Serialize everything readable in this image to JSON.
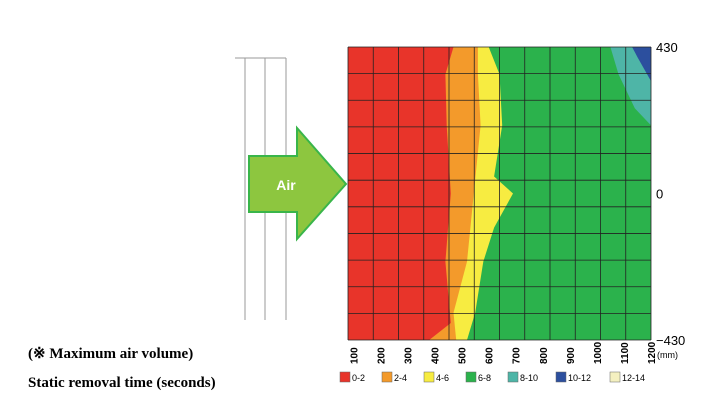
{
  "notes": {
    "line1": "(※ Maximum air volume)",
    "line2": "Static removal time (seconds)"
  },
  "arrow": {
    "label": "Air",
    "fill": "#8dc63f",
    "stroke": "#39b54a",
    "text_color": "#ffffff"
  },
  "chart_data": {
    "type": "heatmap",
    "title": "",
    "x": {
      "unit": "(mm)",
      "ticks": [
        100,
        200,
        300,
        400,
        500,
        600,
        700,
        800,
        900,
        1000,
        1100,
        1200
      ],
      "range": [
        80,
        1200
      ]
    },
    "y": {
      "ticks": [
        430,
        0,
        -430
      ],
      "range": [
        -430,
        430
      ]
    },
    "grid": true,
    "legend": {
      "position": "bottom",
      "entries": [
        {
          "label": "0-2",
          "color": "#e8342a"
        },
        {
          "label": "2-4",
          "color": "#f39a2b"
        },
        {
          "label": "4-6",
          "color": "#f7ec41"
        },
        {
          "label": "6-8",
          "color": "#2bb24c"
        },
        {
          "label": "8-10",
          "color": "#4eb5a7"
        },
        {
          "label": "10-12",
          "color": "#2c4f9e"
        },
        {
          "label": "12-14",
          "color": "#f4f0c0"
        }
      ]
    },
    "zone_boundaries_mm": [
      {
        "between": "0-2 / 2-4",
        "points": [
          [
            430,
            470
          ],
          [
            350,
            440
          ],
          [
            200,
            445
          ],
          [
            0,
            460
          ],
          [
            -200,
            440
          ],
          [
            -380,
            460
          ],
          [
            -430,
            380
          ]
        ]
      },
      {
        "between": "2-4 / 4-6",
        "points": [
          [
            430,
            560
          ],
          [
            350,
            560
          ],
          [
            200,
            570
          ],
          [
            0,
            545
          ],
          [
            -200,
            520
          ],
          [
            -350,
            470
          ],
          [
            -430,
            480
          ]
        ]
      },
      {
        "between": "4-6 / 6-8",
        "points": [
          [
            430,
            600
          ],
          [
            350,
            640
          ],
          [
            200,
            650
          ],
          [
            50,
            620
          ],
          [
            0,
            690
          ],
          [
            -100,
            620
          ],
          [
            -200,
            580
          ],
          [
            -350,
            550
          ],
          [
            -430,
            520
          ]
        ]
      },
      {
        "between": "6-8 / 8-10",
        "points": [
          [
            430,
            1050
          ],
          [
            350,
            1080
          ],
          [
            250,
            1140
          ],
          [
            200,
            1200
          ]
        ]
      },
      {
        "between": "8-10 / 10-12",
        "points": [
          [
            430,
            1130
          ],
          [
            400,
            1150
          ],
          [
            330,
            1200
          ]
        ]
      }
    ]
  }
}
